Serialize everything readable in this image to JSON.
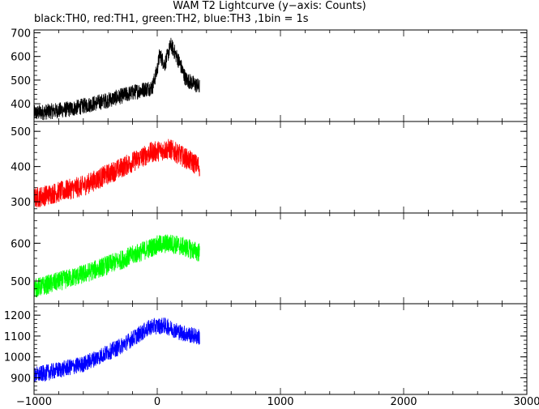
{
  "title": "WAM T2 Lightcurve (y−axis: Counts)",
  "subtitle": "black:TH0, red:TH1, green:TH2, blue:TH3 ,1bin = 1s",
  "chart_data": {
    "type": "line",
    "xlim": [
      -1000,
      3000
    ],
    "x_ticks": [
      -1000,
      0,
      1000,
      2000,
      3000
    ],
    "x_tick_labels": [
      "−1000",
      "0",
      "1000",
      "2000",
      "3000"
    ],
    "data_x_range": [
      -1000,
      345
    ],
    "bin_seconds": 1,
    "panels": [
      {
        "series": "TH0",
        "color": "#000000",
        "ylim": [
          325,
          712
        ],
        "y_ticks": [
          400,
          500,
          600,
          700
        ],
        "y_tick_labels": [
          "400",
          "500",
          "600",
          "700"
        ],
        "trend": {
          "x": [
            -1000,
            -700,
            -400,
            -150,
            -40,
            0,
            20,
            60,
            110,
            130,
            180,
            230,
            345
          ],
          "y": [
            360,
            378,
            415,
            455,
            470,
            545,
            610,
            565,
            648,
            630,
            575,
            505,
            470
          ]
        },
        "noise": 34
      },
      {
        "series": "TH1",
        "color": "#ff0000",
        "ylim": [
          268,
          528
        ],
        "y_ticks": [
          300,
          400,
          500
        ],
        "y_tick_labels": [
          "300",
          "400",
          "500"
        ],
        "trend": {
          "x": [
            -1000,
            -600,
            -300,
            -50,
            100,
            200,
            345
          ],
          "y": [
            310,
            345,
            395,
            440,
            450,
            430,
            400
          ]
        },
        "noise": 30
      },
      {
        "series": "TH2",
        "color": "#00ff00",
        "ylim": [
          440,
          680
        ],
        "y_ticks": [
          500,
          600
        ],
        "y_tick_labels": [
          "500",
          "600"
        ],
        "trend": {
          "x": [
            -1000,
            -600,
            -300,
            0,
            100,
            200,
            345
          ],
          "y": [
            480,
            518,
            555,
            595,
            600,
            592,
            575
          ]
        },
        "noise": 26
      },
      {
        "series": "TH3",
        "color": "#0000ff",
        "ylim": [
          820,
          1255
        ],
        "y_ticks": [
          900,
          1000,
          1100,
          1200
        ],
        "y_tick_labels": [
          "900",
          "1000",
          "1100",
          "1200"
        ],
        "trend": {
          "x": [
            -1000,
            -600,
            -300,
            -50,
            60,
            200,
            345
          ],
          "y": [
            910,
            965,
            1050,
            1145,
            1150,
            1115,
            1095
          ]
        },
        "noise": 40
      }
    ]
  }
}
